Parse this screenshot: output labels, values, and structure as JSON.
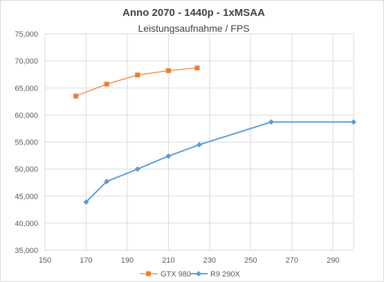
{
  "chart_data": {
    "type": "line",
    "title": "Anno 2070 - 1440p - 1xMSAA",
    "subtitle": "Leistungsaufnahme / FPS",
    "xlim": [
      150,
      300
    ],
    "ylim": [
      35000,
      75000
    ],
    "x_ticks": [
      150,
      170,
      190,
      210,
      230,
      250,
      270,
      290
    ],
    "y_ticks": [
      35000,
      40000,
      45000,
      50000,
      55000,
      60000,
      65000,
      70000,
      75000
    ],
    "grid": true,
    "legend_position": "bottom",
    "series": [
      {
        "name": "GTX 980",
        "color": "#ED7D31",
        "marker": "square",
        "points": [
          [
            165,
            63500
          ],
          [
            180,
            65700
          ],
          [
            195,
            67400
          ],
          [
            210,
            68200
          ],
          [
            224,
            68700
          ]
        ]
      },
      {
        "name": "R9 290X",
        "color": "#5B9BD5",
        "marker": "diamond",
        "points": [
          [
            170,
            43900
          ],
          [
            180,
            47700
          ],
          [
            195,
            50000
          ],
          [
            210,
            52400
          ],
          [
            225,
            54500
          ],
          [
            260,
            58700
          ],
          [
            300,
            58700
          ]
        ]
      }
    ]
  }
}
